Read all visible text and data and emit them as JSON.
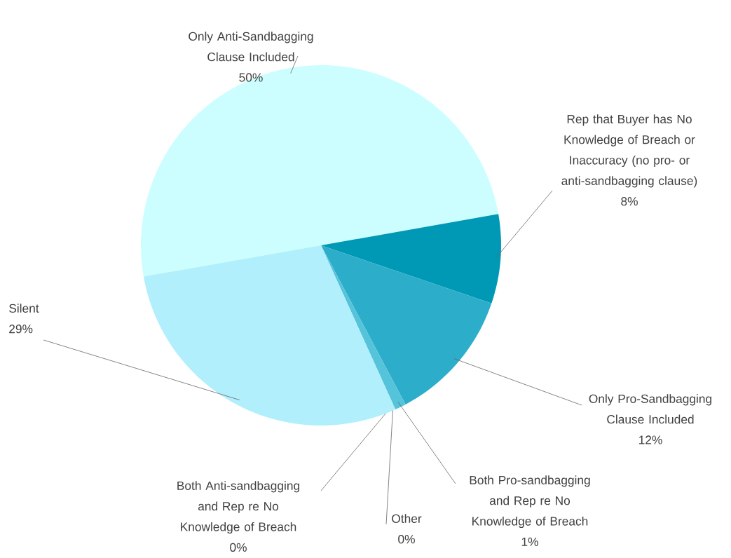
{
  "chart_data": {
    "type": "pie",
    "categories": [
      "Only Anti-Sandbagging Clause Included",
      "Rep that Buyer has No Knowledge of Breach or Inaccuracy (no pro- or anti-sandbagging clause)",
      "Only Pro-Sandbagging Clause Included",
      "Both Pro-sandbagging and Rep re No Knowledge of Breach",
      "Other",
      "Both Anti-sandbagging and Rep re No Knowledge of Breach",
      "Silent"
    ],
    "values": [
      50,
      8,
      12,
      1,
      0,
      0,
      29
    ],
    "value_labels": [
      "50%",
      "8%",
      "12%",
      "1%",
      "0%",
      "0%",
      "29%"
    ],
    "colors": [
      "#ccfeff",
      "#0099b5",
      "#2cadca",
      "#55c3da",
      "#7fd3e4",
      "#99e0ee",
      "#b0effb"
    ]
  }
}
